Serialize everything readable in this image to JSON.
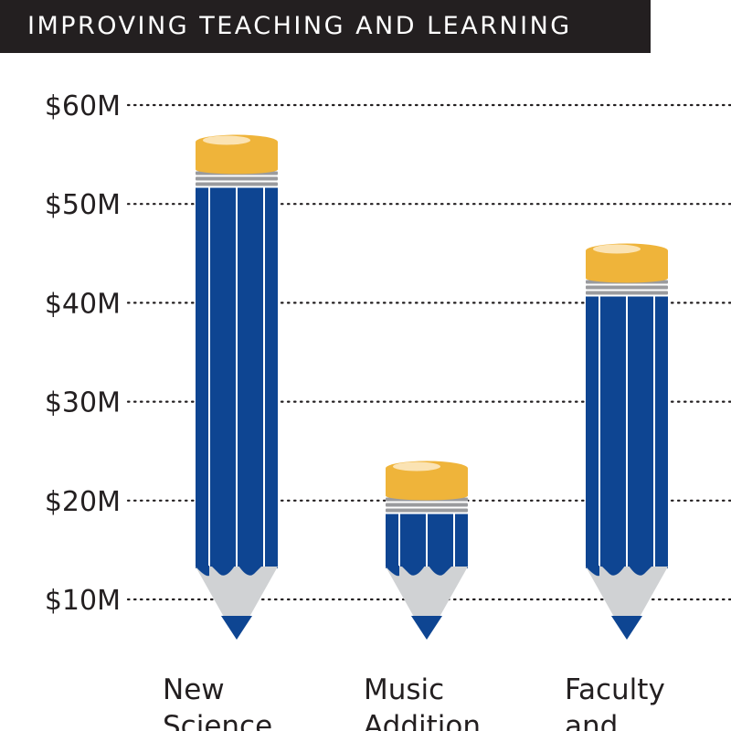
{
  "header": {
    "title": "IMPROVING TEACHING AND LEARNING"
  },
  "colors": {
    "header_bg": "#231f20",
    "pencil_body": "#0e4592",
    "pencil_stripe": "#ffffff",
    "eraser": "#efb43a",
    "eraser_highlight": "#fbe3b3",
    "ferrule": "#9a9b9e",
    "wood": "#d0d2d4",
    "lead": "#0e4592",
    "grid": "#231f20",
    "text": "#231f20"
  },
  "chart_data": {
    "type": "bar",
    "title": "IMPROVING TEACHING AND LEARNING",
    "ylim": [
      10,
      60
    ],
    "yticks": [
      10,
      20,
      30,
      40,
      50,
      60
    ],
    "ytick_labels": [
      "$10M",
      "$20M",
      "$30M",
      "$40M",
      "$50M",
      "$60M"
    ],
    "grid": true,
    "categories": [
      [
        "New",
        "Science"
      ],
      [
        "Music",
        "Addition"
      ],
      [
        "Faculty",
        "and"
      ]
    ],
    "values": [
      57,
      24,
      46
    ]
  }
}
